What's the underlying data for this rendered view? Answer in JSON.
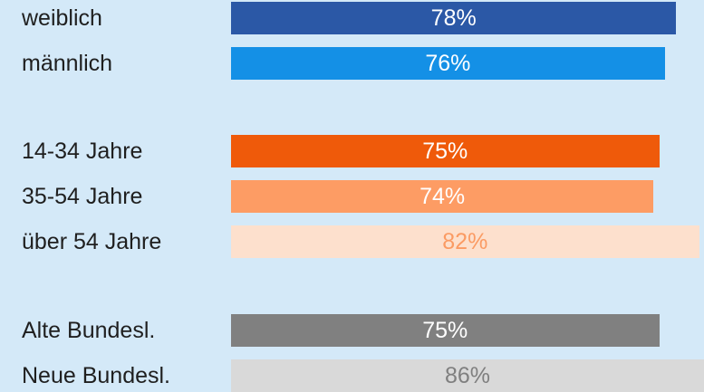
{
  "chart_data": {
    "type": "bar",
    "orientation": "horizontal",
    "title": "",
    "xlabel": "",
    "ylabel": "",
    "xlim": [
      0,
      100
    ],
    "grid": false,
    "categories": [
      "weiblich",
      "männlich",
      "14-34 Jahre",
      "35-54 Jahre",
      "über 54 Jahre",
      "Alte Bundesl.",
      "Neue Bundesl."
    ],
    "values": [
      78,
      76,
      75,
      74,
      82,
      75,
      86
    ],
    "value_labels": [
      "78%",
      "76%",
      "75%",
      "74%",
      "82%",
      "75%",
      "86%"
    ],
    "groups": [
      [
        0,
        1
      ],
      [
        2,
        3,
        4
      ],
      [
        5,
        6
      ]
    ],
    "colors": [
      "#2b58a6",
      "#1490e6",
      "#ef5a0a",
      "#fd9c64",
      "#fde0cd",
      "#808080",
      "#d9d9d9"
    ],
    "label_colors": [
      "#ffffff",
      "#ffffff",
      "#ffffff",
      "#ffffff",
      "#fb9b63",
      "#ffffff",
      "#7f7f7f"
    ]
  }
}
